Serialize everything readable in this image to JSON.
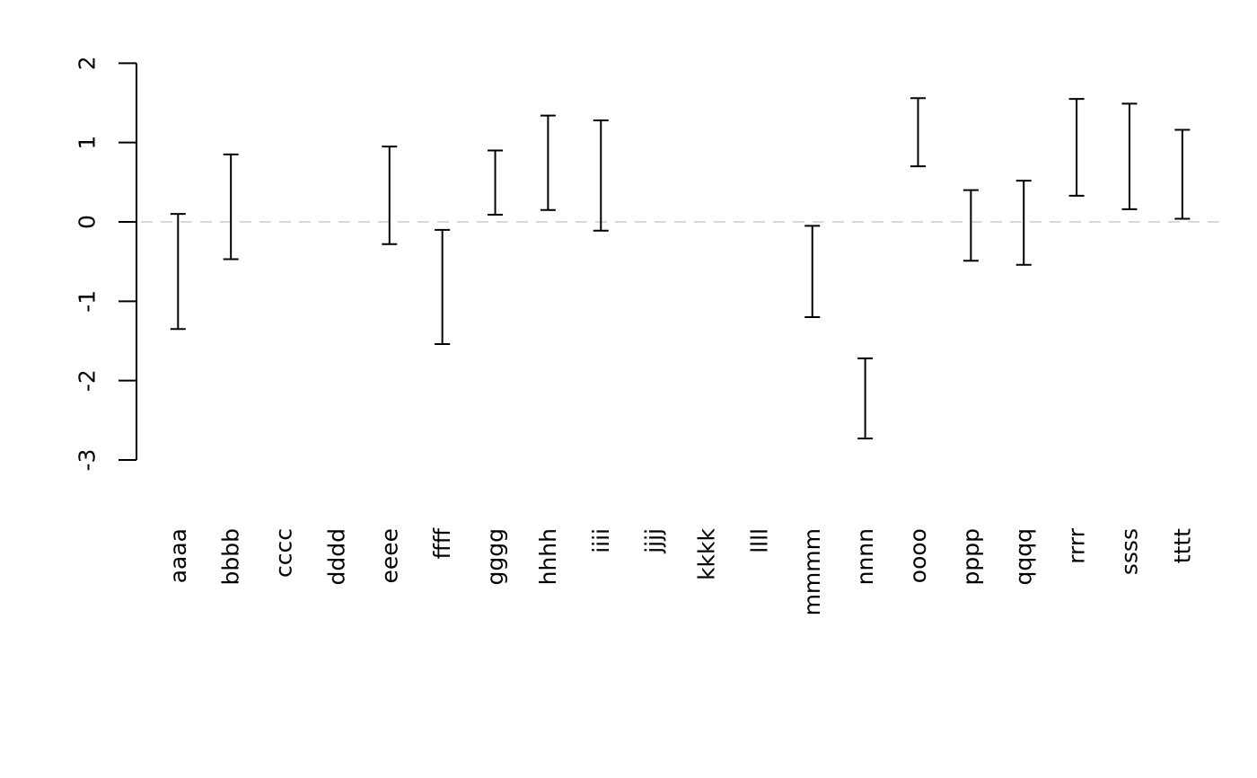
{
  "chart_data": {
    "type": "scatter",
    "subtype": "vertical-interval-errorbar-plot",
    "title": "",
    "xlabel": "",
    "ylabel": "",
    "categories": [
      "aaaa",
      "bbbb",
      "cccc",
      "dddd",
      "eeee",
      "ffff",
      "gggg",
      "hhhh",
      "iiii",
      "jjjj",
      "kkkk",
      "llll",
      "mmmm",
      "nnnn",
      "oooo",
      "pppp",
      "qqqq",
      "rrrr",
      "ssss",
      "tttt"
    ],
    "intervals": [
      {
        "category": "aaaa",
        "upper": 0.1,
        "lower": -1.35
      },
      {
        "category": "bbbb",
        "upper": 0.85,
        "lower": -0.47
      },
      {
        "category": "cccc",
        "upper": null,
        "lower": null
      },
      {
        "category": "dddd",
        "upper": null,
        "lower": null
      },
      {
        "category": "eeee",
        "upper": 0.95,
        "lower": -0.28
      },
      {
        "category": "ffff",
        "upper": -0.1,
        "lower": -1.54
      },
      {
        "category": "gggg",
        "upper": 0.9,
        "lower": 0.09
      },
      {
        "category": "hhhh",
        "upper": 1.34,
        "lower": 0.15
      },
      {
        "category": "iiii",
        "upper": 1.28,
        "lower": -0.11
      },
      {
        "category": "jjjj",
        "upper": null,
        "lower": null
      },
      {
        "category": "kkkk",
        "upper": null,
        "lower": null
      },
      {
        "category": "llll",
        "upper": null,
        "lower": null
      },
      {
        "category": "mmmm",
        "upper": -0.05,
        "lower": -1.2
      },
      {
        "category": "nnnn",
        "upper": -1.72,
        "lower": -2.73
      },
      {
        "category": "oooo",
        "upper": 1.56,
        "lower": 0.7
      },
      {
        "category": "pppp",
        "upper": 0.4,
        "lower": -0.49
      },
      {
        "category": "qqqq",
        "upper": 0.52,
        "lower": -0.54
      },
      {
        "category": "rrrr",
        "upper": 1.55,
        "lower": 0.33
      },
      {
        "category": "ssss",
        "upper": 1.49,
        "lower": 0.16
      },
      {
        "category": "tttt",
        "upper": 1.16,
        "lower": 0.04
      }
    ],
    "yticks": [
      2,
      1,
      0,
      -1,
      -2,
      -3
    ],
    "ytick_labels": [
      "2",
      "1",
      "0",
      "-1",
      "-2",
      "-3"
    ],
    "ylim": [
      -3,
      2
    ],
    "grid": false,
    "legend": null,
    "reference_line": {
      "y": 0,
      "style": "dashed",
      "color": "#d8d8d8"
    },
    "colors": {
      "interval": "#000000",
      "axis": "#000000",
      "reference": "#d8d8d8",
      "background": "#ffffff"
    }
  }
}
